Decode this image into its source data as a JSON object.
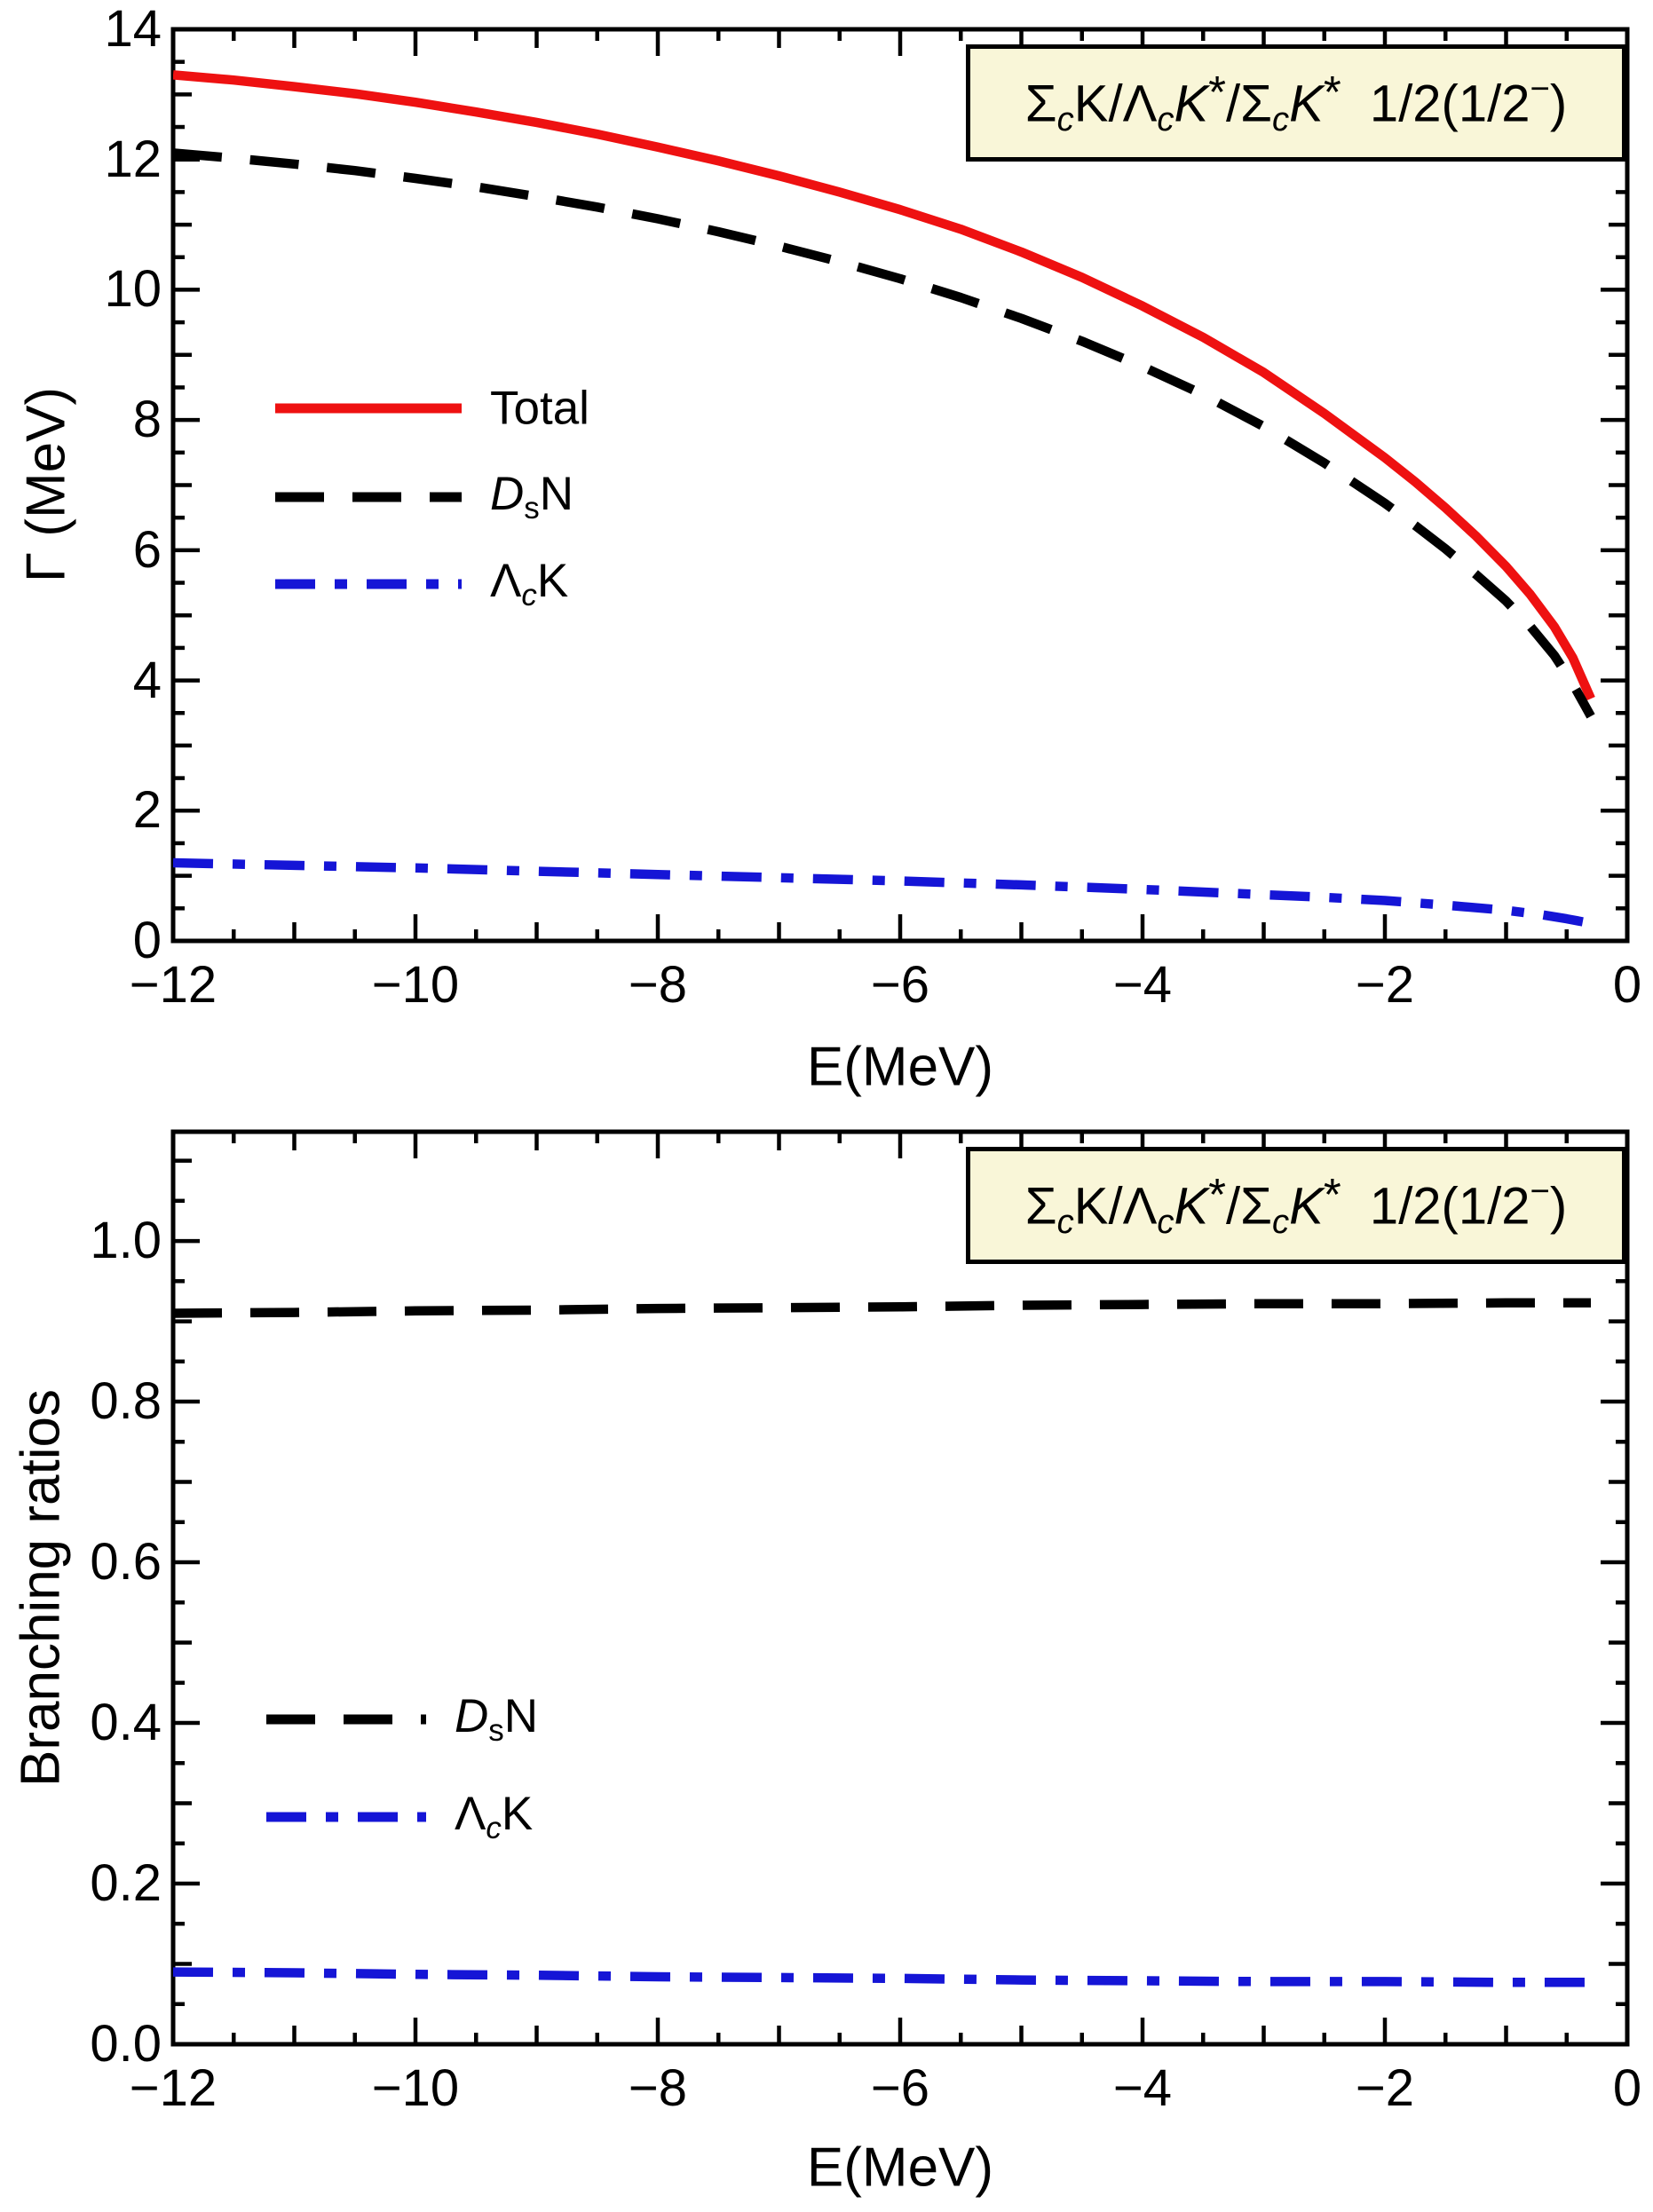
{
  "figure": {
    "background": "#ffffff",
    "frame_color": "#000000",
    "title_box_fill": "#f9f6d8"
  },
  "chart_data": [
    {
      "type": "line",
      "title_plain": "ΣcK/ΛcK*/ΣcK* 1/2(1/2−)",
      "title_segments": [
        {
          "t": "Σ",
          "s": "n"
        },
        {
          "t": "c",
          "s": "sub-i"
        },
        {
          "t": "K",
          "s": "n"
        },
        {
          "t": "/",
          "s": "n"
        },
        {
          "t": "Λ",
          "s": "n"
        },
        {
          "t": "c",
          "s": "sub-i"
        },
        {
          "t": "K",
          "s": "i"
        },
        {
          "t": "*",
          "s": "star"
        },
        {
          "t": "/",
          "s": "n"
        },
        {
          "t": "Σ",
          "s": "n"
        },
        {
          "t": "c",
          "s": "sub-i"
        },
        {
          "t": "K",
          "s": "i"
        },
        {
          "t": "*",
          "s": "star"
        },
        {
          "t": "  1/2(1/2",
          "s": "n"
        },
        {
          "t": "−",
          "s": "sup"
        },
        {
          "t": ")",
          "s": "n"
        }
      ],
      "xlabel": "E(MeV)",
      "ylabel": "Γ (MeV)",
      "xlim": [
        -12,
        0
      ],
      "ylim": [
        0,
        14
      ],
      "grid": false,
      "legend_position": "center-left-inside",
      "x_ticks": [
        {
          "v": -12,
          "label": "−12"
        },
        {
          "v": -10,
          "label": "−10"
        },
        {
          "v": -8,
          "label": "−8"
        },
        {
          "v": -6,
          "label": "−6"
        },
        {
          "v": -4,
          "label": "−4"
        },
        {
          "v": -2,
          "label": "−2"
        },
        {
          "v": 0,
          "label": "0"
        }
      ],
      "y_ticks": [
        {
          "v": 0,
          "label": "0"
        },
        {
          "v": 2,
          "label": "2"
        },
        {
          "v": 4,
          "label": "4"
        },
        {
          "v": 6,
          "label": "6"
        },
        {
          "v": 8,
          "label": "8"
        },
        {
          "v": 10,
          "label": "10"
        },
        {
          "v": 12,
          "label": "12"
        },
        {
          "v": 14,
          "label": "14"
        }
      ],
      "x_minor_step": 0.5,
      "x_medium_step": 1,
      "y_minor_step": 0.5,
      "y_medium_step": 1,
      "series": [
        {
          "name": "Total",
          "color": "#ee1111",
          "style": "solid",
          "label_segments": [
            {
              "t": "Total",
              "s": "n"
            }
          ],
          "points": [
            [
              -12,
              13.3
            ],
            [
              -11.5,
              13.22
            ],
            [
              -11,
              13.12
            ],
            [
              -10.5,
              13.01
            ],
            [
              -10,
              12.88
            ],
            [
              -9.5,
              12.73
            ],
            [
              -9,
              12.57
            ],
            [
              -8.5,
              12.39
            ],
            [
              -8,
              12.19
            ],
            [
              -7.5,
              11.98
            ],
            [
              -7,
              11.75
            ],
            [
              -6.5,
              11.5
            ],
            [
              -6,
              11.23
            ],
            [
              -5.5,
              10.93
            ],
            [
              -5,
              10.58
            ],
            [
              -4.5,
              10.19
            ],
            [
              -4,
              9.75
            ],
            [
              -3.5,
              9.27
            ],
            [
              -3,
              8.73
            ],
            [
              -2.5,
              8.1
            ],
            [
              -2,
              7.42
            ],
            [
              -1.75,
              7.05
            ],
            [
              -1.5,
              6.65
            ],
            [
              -1.25,
              6.22
            ],
            [
              -1,
              5.75
            ],
            [
              -0.8,
              5.32
            ],
            [
              -0.6,
              4.82
            ],
            [
              -0.45,
              4.35
            ],
            [
              -0.3,
              3.72
            ]
          ]
        },
        {
          "name": "DsN",
          "color": "#000000",
          "style": "dashed",
          "label_segments": [
            {
              "t": "D",
              "s": "i"
            },
            {
              "t": "s",
              "s": "sub"
            },
            {
              "t": "N",
              "s": "n"
            }
          ],
          "points": [
            [
              -12,
              12.1
            ],
            [
              -11.5,
              12.02
            ],
            [
              -11,
              11.93
            ],
            [
              -10.5,
              11.83
            ],
            [
              -10,
              11.71
            ],
            [
              -9.5,
              11.58
            ],
            [
              -9,
              11.43
            ],
            [
              -8.5,
              11.27
            ],
            [
              -8,
              11.09
            ],
            [
              -7.5,
              10.89
            ],
            [
              -7,
              10.67
            ],
            [
              -6.5,
              10.43
            ],
            [
              -6,
              10.17
            ],
            [
              -5.5,
              9.88
            ],
            [
              -5,
              9.56
            ],
            [
              -4.5,
              9.21
            ],
            [
              -4,
              8.82
            ],
            [
              -3.5,
              8.39
            ],
            [
              -3,
              7.9
            ],
            [
              -2.5,
              7.34
            ],
            [
              -2,
              6.72
            ],
            [
              -1.75,
              6.38
            ],
            [
              -1.5,
              6.02
            ],
            [
              -1.25,
              5.63
            ],
            [
              -1,
              5.22
            ],
            [
              -0.8,
              4.83
            ],
            [
              -0.6,
              4.38
            ],
            [
              -0.45,
              3.95
            ],
            [
              -0.3,
              3.45
            ]
          ]
        },
        {
          "name": "LambdacK",
          "color": "#1515d6",
          "style": "dashdot",
          "label_segments": [
            {
              "t": "Λ",
              "s": "n"
            },
            {
              "t": "c",
              "s": "sub-i"
            },
            {
              "t": "K",
              "s": "n"
            }
          ],
          "points": [
            [
              -12,
              1.2
            ],
            [
              -11,
              1.16
            ],
            [
              -10,
              1.12
            ],
            [
              -9,
              1.07
            ],
            [
              -8,
              1.02
            ],
            [
              -7,
              0.97
            ],
            [
              -6,
              0.92
            ],
            [
              -5,
              0.86
            ],
            [
              -4,
              0.79
            ],
            [
              -3,
              0.71
            ],
            [
              -2.5,
              0.67
            ],
            [
              -2,
              0.62
            ],
            [
              -1.5,
              0.55
            ],
            [
              -1,
              0.47
            ],
            [
              -0.7,
              0.4
            ],
            [
              -0.5,
              0.34
            ],
            [
              -0.3,
              0.27
            ]
          ]
        }
      ]
    },
    {
      "type": "line",
      "title_plain": "ΣcK/ΛcK*/ΣcK* 1/2(1/2−)",
      "title_segments": [
        {
          "t": "Σ",
          "s": "n"
        },
        {
          "t": "c",
          "s": "sub-i"
        },
        {
          "t": "K",
          "s": "n"
        },
        {
          "t": "/",
          "s": "n"
        },
        {
          "t": "Λ",
          "s": "n"
        },
        {
          "t": "c",
          "s": "sub-i"
        },
        {
          "t": "K",
          "s": "i"
        },
        {
          "t": "*",
          "s": "star"
        },
        {
          "t": "/",
          "s": "n"
        },
        {
          "t": "Σ",
          "s": "n"
        },
        {
          "t": "c",
          "s": "sub-i"
        },
        {
          "t": "K",
          "s": "i"
        },
        {
          "t": "*",
          "s": "star"
        },
        {
          "t": "  1/2(1/2",
          "s": "n"
        },
        {
          "t": "−",
          "s": "sup"
        },
        {
          "t": ")",
          "s": "n"
        }
      ],
      "xlabel": "E(MeV)",
      "ylabel": "Branching ratios",
      "xlim": [
        -12,
        0
      ],
      "ylim": [
        0,
        1.136
      ],
      "grid": false,
      "legend_position": "center-left-inside",
      "x_ticks": [
        {
          "v": -12,
          "label": "−12"
        },
        {
          "v": -10,
          "label": "−10"
        },
        {
          "v": -8,
          "label": "−8"
        },
        {
          "v": -6,
          "label": "−6"
        },
        {
          "v": -4,
          "label": "−4"
        },
        {
          "v": -2,
          "label": "−2"
        },
        {
          "v": 0,
          "label": "0"
        }
      ],
      "y_ticks": [
        {
          "v": 0,
          "label": "0.0"
        },
        {
          "v": 0.2,
          "label": "0.2"
        },
        {
          "v": 0.4,
          "label": "0.4"
        },
        {
          "v": 0.6,
          "label": "0.6"
        },
        {
          "v": 0.8,
          "label": "0.8"
        },
        {
          "v": 1.0,
          "label": "1.0"
        }
      ],
      "x_minor_step": 0.5,
      "x_medium_step": 1,
      "y_minor_step": 0.05,
      "y_medium_step": 0.1,
      "series": [
        {
          "name": "DsN",
          "color": "#000000",
          "style": "dashed",
          "label_segments": [
            {
              "t": "D",
              "s": "i"
            },
            {
              "t": "s",
              "s": "sub"
            },
            {
              "t": "N",
              "s": "n"
            }
          ],
          "points": [
            [
              -12,
              0.91
            ],
            [
              -11,
              0.911
            ],
            [
              -10,
              0.913
            ],
            [
              -9,
              0.914
            ],
            [
              -8,
              0.916
            ],
            [
              -7,
              0.917
            ],
            [
              -6,
              0.918
            ],
            [
              -5,
              0.92
            ],
            [
              -4,
              0.921
            ],
            [
              -3,
              0.922
            ],
            [
              -2,
              0.922
            ],
            [
              -1,
              0.923
            ],
            [
              -0.3,
              0.923
            ]
          ]
        },
        {
          "name": "LambdacK",
          "color": "#1515d6",
          "style": "dashdot",
          "label_segments": [
            {
              "t": "Λ",
              "s": "n"
            },
            {
              "t": "c",
              "s": "sub-i"
            },
            {
              "t": "K",
              "s": "n"
            }
          ],
          "points": [
            [
              -12,
              0.09
            ],
            [
              -11,
              0.089
            ],
            [
              -10,
              0.087
            ],
            [
              -9,
              0.086
            ],
            [
              -8,
              0.084
            ],
            [
              -7,
              0.083
            ],
            [
              -6,
              0.082
            ],
            [
              -5,
              0.08
            ],
            [
              -4,
              0.079
            ],
            [
              -3,
              0.078
            ],
            [
              -2,
              0.078
            ],
            [
              -1,
              0.077
            ],
            [
              -0.3,
              0.077
            ]
          ]
        }
      ]
    }
  ]
}
